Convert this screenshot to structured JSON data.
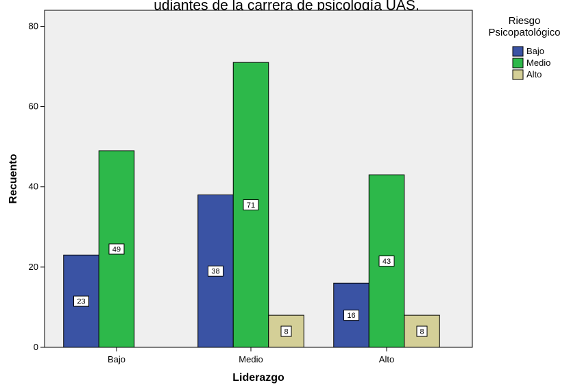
{
  "chart_data": {
    "type": "bar",
    "title": "udiantes de la carrera de psicología UAS.",
    "xlabel": "Liderazgo",
    "ylabel": "Recuento",
    "categories": [
      "Bajo",
      "Medio",
      "Alto"
    ],
    "ylim": [
      0,
      84
    ],
    "yticks": [
      0,
      20,
      40,
      60,
      80
    ],
    "grid": false,
    "legend_title": "Riesgo Psicopatológico",
    "legend_title_lines": [
      "Riesgo",
      "Psicopatológico"
    ],
    "legend_position": "top-right outside",
    "series": [
      {
        "name": "Bajo",
        "color": "#3a53a4",
        "values": [
          23,
          38,
          16
        ]
      },
      {
        "name": "Medio",
        "color": "#2db84a",
        "values": [
          49,
          71,
          43
        ]
      },
      {
        "name": "Alto",
        "color": "#d4cf97",
        "values": [
          null,
          8,
          8
        ]
      }
    ]
  }
}
